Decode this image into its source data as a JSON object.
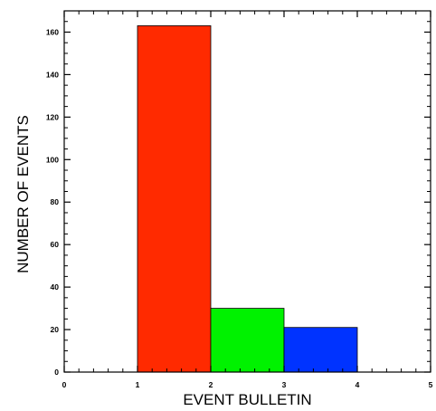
{
  "chart_data": {
    "type": "bar",
    "title": "",
    "xlabel": "EVENT BULLETIN",
    "ylabel": "NUMBER OF EVENTS",
    "xlim": [
      0,
      5
    ],
    "ylim": [
      0,
      170
    ],
    "xticks": [
      0,
      1,
      2,
      3,
      4,
      5
    ],
    "yticks": [
      0,
      20,
      40,
      60,
      80,
      100,
      120,
      140,
      160
    ],
    "grid": false,
    "legend": "none",
    "bars": [
      {
        "x0": 1,
        "x1": 2,
        "value": 163,
        "color": "#ff2a00"
      },
      {
        "x0": 2,
        "x1": 3,
        "value": 30,
        "color": "#00f200"
      },
      {
        "x0": 3,
        "x1": 4,
        "value": 21,
        "color": "#0033ff"
      }
    ]
  }
}
